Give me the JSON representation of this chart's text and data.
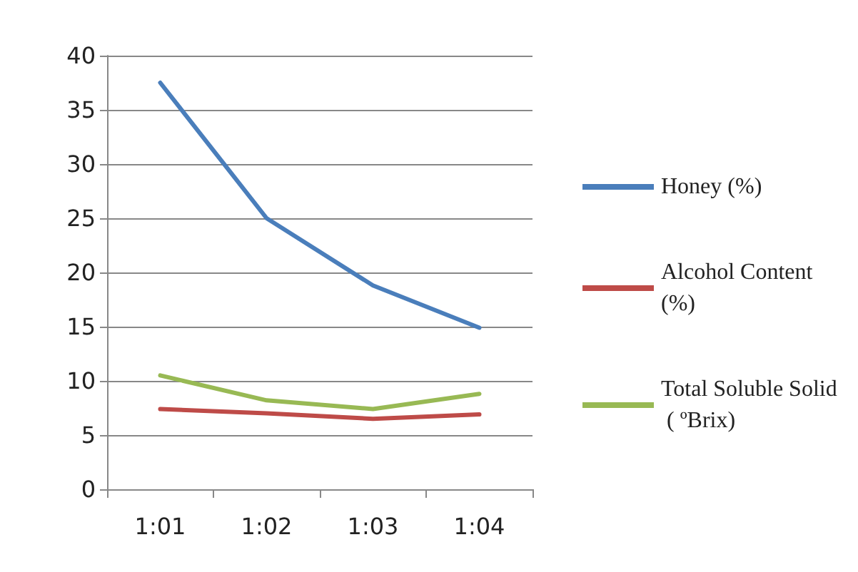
{
  "chart_data": {
    "type": "line",
    "categories": [
      "1:01",
      "1:02",
      "1:03",
      "1:04"
    ],
    "series": [
      {
        "name": "Honey (%)",
        "color": "#4a7ebb",
        "values": [
          37.5,
          25,
          18.8,
          14.9
        ]
      },
      {
        "name": "Alcohol Content (%)",
        "color": "#be4b48",
        "values": [
          7.4,
          7.0,
          6.5,
          6.9
        ]
      },
      {
        "name": "Total Soluble Solid ( ºBrix)",
        "color": "#98b954",
        "values": [
          10.5,
          8.2,
          7.4,
          8.8
        ]
      }
    ],
    "ylim": [
      0,
      40
    ],
    "yticks": [
      0,
      5,
      10,
      15,
      20,
      25,
      30,
      35,
      40
    ],
    "grid": "y",
    "legend": "right",
    "marker": "none",
    "line_style": "solid"
  }
}
